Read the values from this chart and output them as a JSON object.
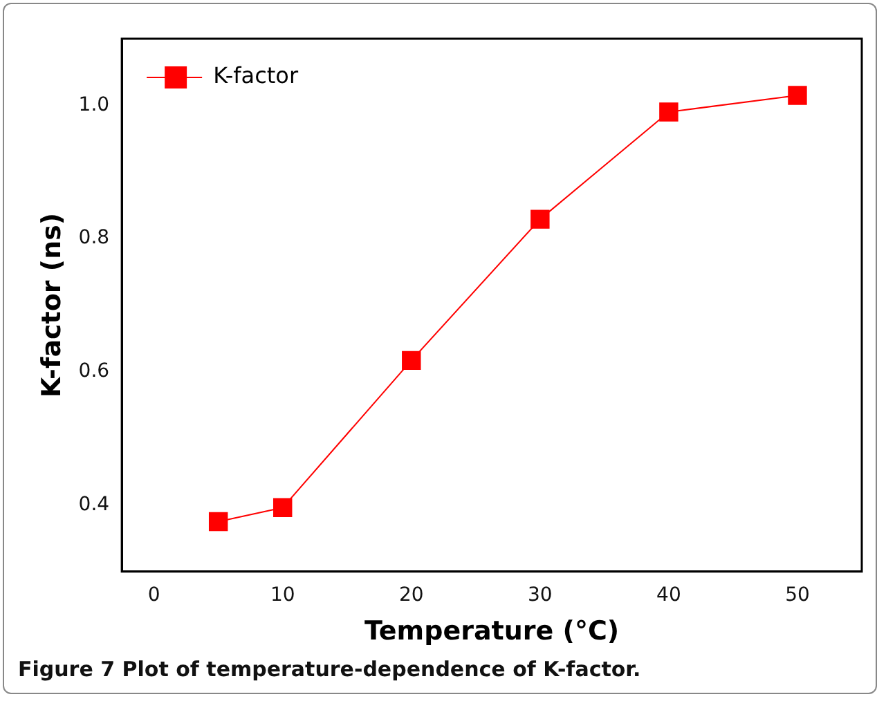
{
  "chart_data": {
    "type": "line",
    "xlabel": "Temperature (°C)",
    "ylabel": "K-factor (ns)",
    "x": [
      5,
      10,
      20,
      30,
      40,
      50
    ],
    "series": [
      {
        "name": "K-factor",
        "color": "#ff0000",
        "values": [
          0.375,
          0.396,
          0.617,
          0.829,
          0.99,
          1.015
        ]
      }
    ],
    "xlim": [
      -2.5,
      55
    ],
    "xticks": [
      0,
      10,
      20,
      30,
      40,
      50
    ],
    "ylim": [
      0.3,
      1.1
    ],
    "yticks": [
      0.4,
      0.6,
      0.8,
      {
        "value": 1,
        "label": "1.0"
      }
    ],
    "grid": false,
    "legend": "top left",
    "marker": "square",
    "line_style": "solid",
    "annotations": [
      "Figure 7 Plot of temperature-dependence of K-factor."
    ]
  }
}
